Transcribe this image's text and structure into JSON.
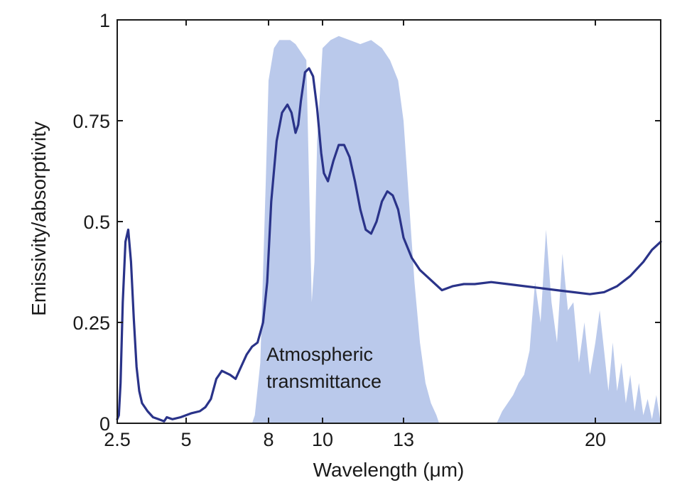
{
  "chart_data": {
    "type": "area",
    "title": "",
    "xlabel": "Wavelength (μm)",
    "ylabel": "Emissivity/absorptivity",
    "xlim": [
      2.5,
      23.0
    ],
    "ylim": [
      0,
      1
    ],
    "grid": false,
    "x_ticks": [
      {
        "value": 2.5,
        "label": "2.5"
      },
      {
        "value": 5,
        "label": "5"
      },
      {
        "value": 8,
        "label": "8"
      },
      {
        "value": 10,
        "label": "10"
      },
      {
        "value": 13,
        "label": "13"
      },
      {
        "value": 20,
        "label": "20"
      }
    ],
    "y_ticks": [
      {
        "value": 0,
        "label": "0"
      },
      {
        "value": 0.25,
        "label": "0.25"
      },
      {
        "value": 0.5,
        "label": "0.5"
      },
      {
        "value": 0.75,
        "label": "0.75"
      },
      {
        "value": 1,
        "label": "1"
      }
    ],
    "annotation": [
      "Atmospheric",
      "transmittance"
    ],
    "colors": {
      "emissivity_line": "#2a3389",
      "transmittance_fill": "#aebfe8",
      "axis": "#1a1a1a"
    },
    "series": [
      {
        "kind": "line",
        "x": [
          2.5,
          2.56,
          2.62,
          2.7,
          2.8,
          2.9,
          3.0,
          3.1,
          3.2,
          3.3,
          3.4,
          3.6,
          3.8,
          4.0,
          4.2,
          4.3,
          4.5,
          4.8,
          5.0,
          5.2,
          5.5,
          5.7,
          5.9,
          6.1,
          6.3,
          6.6,
          6.8,
          7.0,
          7.2,
          7.4,
          7.6,
          7.8,
          7.95,
          8.1,
          8.3,
          8.5,
          8.7,
          8.85,
          9.0,
          9.1,
          9.2,
          9.35,
          9.5,
          9.65,
          9.8,
          9.95,
          10.05,
          10.2,
          10.4,
          10.6,
          10.8,
          11.0,
          11.2,
          11.4,
          11.6,
          11.8,
          12.0,
          12.2,
          12.4,
          12.6,
          12.8,
          13.0,
          13.3,
          13.6,
          14.0,
          14.4,
          14.8,
          15.2,
          15.6,
          16.2,
          16.8,
          17.4,
          18.0,
          18.6,
          19.2,
          19.8,
          20.4,
          21.0,
          21.6,
          22.2,
          22.6,
          23.0
        ],
        "y": [
          0.01,
          0.02,
          0.1,
          0.3,
          0.45,
          0.48,
          0.4,
          0.26,
          0.14,
          0.08,
          0.05,
          0.03,
          0.015,
          0.01,
          0.005,
          0.015,
          0.01,
          0.015,
          0.02,
          0.025,
          0.03,
          0.04,
          0.06,
          0.11,
          0.13,
          0.12,
          0.11,
          0.14,
          0.17,
          0.19,
          0.2,
          0.25,
          0.35,
          0.55,
          0.7,
          0.77,
          0.79,
          0.77,
          0.72,
          0.74,
          0.8,
          0.87,
          0.88,
          0.86,
          0.78,
          0.67,
          0.62,
          0.6,
          0.65,
          0.69,
          0.69,
          0.66,
          0.6,
          0.53,
          0.48,
          0.47,
          0.5,
          0.55,
          0.575,
          0.565,
          0.53,
          0.46,
          0.41,
          0.38,
          0.355,
          0.33,
          0.34,
          0.345,
          0.345,
          0.35,
          0.345,
          0.34,
          0.335,
          0.33,
          0.325,
          0.32,
          0.325,
          0.34,
          0.365,
          0.4,
          0.43,
          0.45
        ]
      },
      {
        "kind": "area",
        "x": [
          7.4,
          7.5,
          7.7,
          7.9,
          8.0,
          8.2,
          8.4,
          8.6,
          8.8,
          9.0,
          9.2,
          9.4,
          9.5,
          9.6,
          9.7,
          9.8,
          10.0,
          10.3,
          10.6,
          11.0,
          11.4,
          11.8,
          12.2,
          12.5,
          12.8,
          13.0,
          13.2,
          13.4,
          13.6,
          13.8,
          14.0,
          14.2,
          14.3
        ],
        "y": [
          0.0,
          0.02,
          0.15,
          0.6,
          0.85,
          0.93,
          0.95,
          0.95,
          0.95,
          0.94,
          0.92,
          0.9,
          0.6,
          0.3,
          0.4,
          0.7,
          0.93,
          0.95,
          0.96,
          0.95,
          0.94,
          0.95,
          0.93,
          0.9,
          0.85,
          0.75,
          0.55,
          0.35,
          0.2,
          0.1,
          0.05,
          0.02,
          0.0
        ]
      },
      {
        "kind": "area",
        "x": [
          16.4,
          16.6,
          16.8,
          17.0,
          17.2,
          17.4,
          17.6,
          17.8,
          18.0,
          18.2,
          18.4,
          18.6,
          18.8,
          19.0,
          19.2,
          19.4,
          19.6,
          19.8,
          20.0,
          20.2,
          20.4,
          20.6,
          20.8,
          21.0,
          21.2,
          21.4,
          21.6,
          21.8,
          22.0,
          22.2,
          22.4,
          22.6,
          22.8,
          23.0
        ],
        "y": [
          0.0,
          0.03,
          0.05,
          0.07,
          0.1,
          0.12,
          0.18,
          0.35,
          0.25,
          0.48,
          0.3,
          0.2,
          0.42,
          0.28,
          0.3,
          0.15,
          0.25,
          0.12,
          0.2,
          0.28,
          0.18,
          0.08,
          0.2,
          0.08,
          0.15,
          0.05,
          0.12,
          0.03,
          0.1,
          0.02,
          0.06,
          0.01,
          0.07,
          0.0
        ]
      }
    ]
  }
}
